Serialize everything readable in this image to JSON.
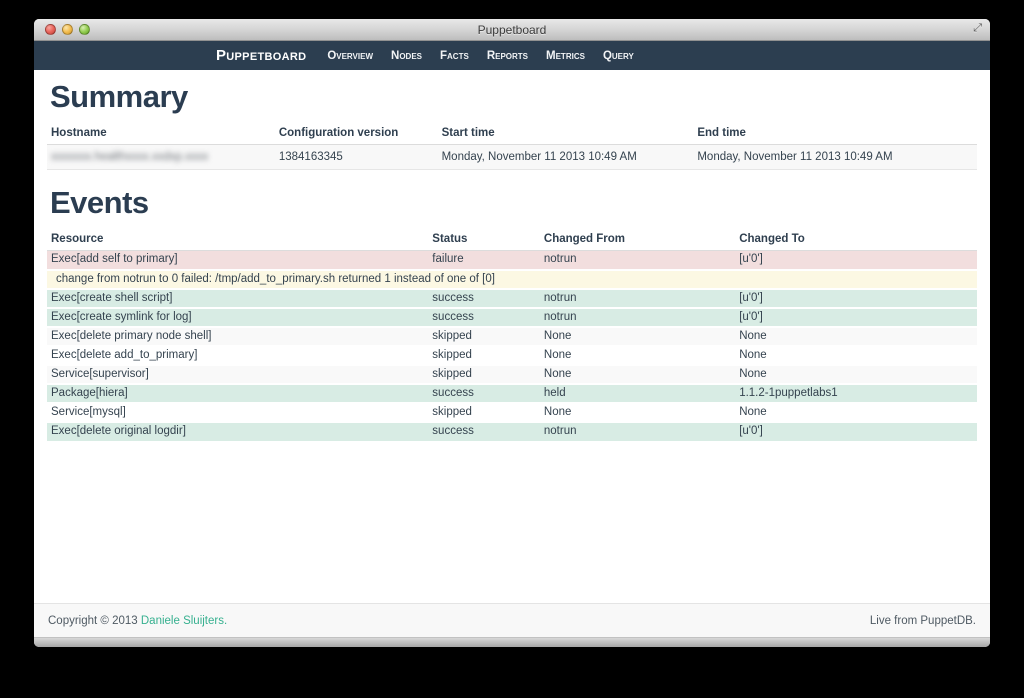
{
  "window": {
    "title": "Puppetboard"
  },
  "navbar": {
    "brand": "Puppetboard",
    "items": [
      "Overview",
      "Nodes",
      "Facts",
      "Reports",
      "Metrics",
      "Query"
    ],
    "background": "#2c3e50"
  },
  "summary": {
    "heading": "Summary",
    "columns": [
      "Hostname",
      "Configuration version",
      "Start time",
      "End time"
    ],
    "row": {
      "hostname": "xxxxxxx.healthxxxx.xxdxp.xxxx",
      "hostname_blurred": true,
      "config_version": "1384163345",
      "start_time": "Monday, November 11 2013 10:49 AM",
      "end_time": "Monday, November 11 2013 10:49 AM"
    }
  },
  "events": {
    "heading": "Events",
    "columns": [
      "Resource",
      "Status",
      "Changed From",
      "Changed To"
    ],
    "rows": [
      {
        "type": "event",
        "variant": "failure",
        "resource": "Exec[add self to primary]",
        "status": "failure",
        "from": "notrun",
        "to": "[u'0']"
      },
      {
        "type": "message",
        "variant": "message",
        "message": "change from notrun to 0 failed: /tmp/add_to_primary.sh returned 1 instead of one of [0]"
      },
      {
        "type": "event",
        "variant": "success",
        "resource": "Exec[create shell script]",
        "status": "success",
        "from": "notrun",
        "to": "[u'0']"
      },
      {
        "type": "event",
        "variant": "success",
        "resource": "Exec[create symlink for log]",
        "status": "success",
        "from": "notrun",
        "to": "[u'0']"
      },
      {
        "type": "event",
        "variant": "skipped-odd",
        "resource": "Exec[delete primary node shell]",
        "status": "skipped",
        "from": "None",
        "to": "None"
      },
      {
        "type": "event",
        "variant": "skipped-even",
        "resource": "Exec[delete add_to_primary]",
        "status": "skipped",
        "from": "None",
        "to": "None"
      },
      {
        "type": "event",
        "variant": "skipped-odd",
        "resource": "Service[supervisor]",
        "status": "skipped",
        "from": "None",
        "to": "None"
      },
      {
        "type": "event",
        "variant": "success",
        "resource": "Package[hiera]",
        "status": "success",
        "from": "held",
        "to": "1.1.2-1puppetlabs1"
      },
      {
        "type": "event",
        "variant": "skipped-even",
        "resource": "Service[mysql]",
        "status": "skipped",
        "from": "None",
        "to": "None"
      },
      {
        "type": "event",
        "variant": "success",
        "resource": "Exec[delete original logdir]",
        "status": "success",
        "from": "notrun",
        "to": "[u'0']"
      }
    ]
  },
  "footer": {
    "copyright": "Copyright © 2013",
    "author_link": "Daniele Sluijters.",
    "live_status": "Live from PuppetDB."
  },
  "colors": {
    "navbar": "#2c3e50",
    "heading": "#2b3d51",
    "failure_row": "#f2dede",
    "message_row": "#fcf8e3",
    "success_row": "#d8ece4",
    "stripe_row": "#f9f9f9",
    "link": "#36b08f"
  }
}
